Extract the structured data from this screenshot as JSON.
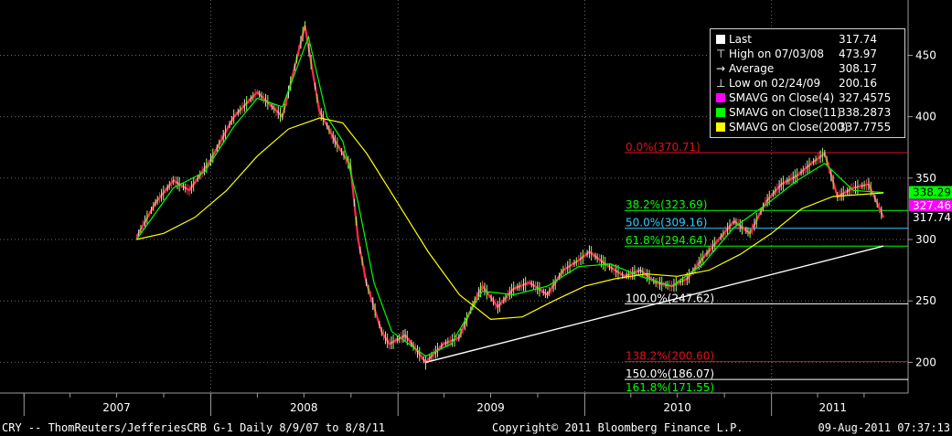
{
  "footer": {
    "left": "CRY -- ThomReuters/JefferiesCRB   G-1  Daily  8/9/07 to 8/8/11",
    "center": "Copyright© 2011 Bloomberg Finance L.P.",
    "right": "09-Aug-2011 07:37:13"
  },
  "legend": [
    {
      "glyph": "square",
      "color": "#ffffff",
      "label": "Last",
      "value": "317.74"
    },
    {
      "glyph": "high-marker",
      "color": "#ffffff",
      "label": "High on 07/03/08",
      "value": "473.97"
    },
    {
      "glyph": "average-marker",
      "color": "#ffffff",
      "label": "Average",
      "value": "308.17"
    },
    {
      "glyph": "low-marker",
      "color": "#ffffff",
      "label": "Low on 02/24/09",
      "value": "200.16"
    },
    {
      "glyph": "square",
      "color": "#ff00ff",
      "label": "SMAVG on Close(4)",
      "value": "327.4575"
    },
    {
      "glyph": "square",
      "color": "#00ff00",
      "label": "SMAVG on Close(11)",
      "value": "338.2873"
    },
    {
      "glyph": "square",
      "color": "#ffff00",
      "label": "SMAVG on Close(200)",
      "value": "337.7755"
    }
  ],
  "chart_data": {
    "type": "line",
    "x_tick_labels": [
      "2007",
      "2008",
      "2009",
      "2010",
      "2011"
    ],
    "y_ticks": [
      200,
      250,
      300,
      350,
      400,
      450
    ],
    "ylim": [
      175,
      495
    ],
    "grid": true,
    "legend_position": "top-right",
    "series": [
      {
        "name": "Last",
        "color": "#ff2a4a",
        "x": [
          "2007-08-09",
          "2007-09-15",
          "2007-10-20",
          "2007-11-20",
          "2008-01-01",
          "2008-02-15",
          "2008-04-01",
          "2008-05-20",
          "2008-07-03",
          "2008-07-31",
          "2008-08-31",
          "2008-09-30",
          "2008-10-15",
          "2008-10-31",
          "2008-11-30",
          "2008-12-15",
          "2009-01-15",
          "2009-02-24",
          "2009-03-31",
          "2009-04-30",
          "2009-05-31",
          "2009-06-15",
          "2009-07-15",
          "2009-08-15",
          "2009-09-15",
          "2009-10-20",
          "2009-11-20",
          "2009-12-20",
          "2010-01-10",
          "2010-02-10",
          "2010-03-20",
          "2010-04-20",
          "2010-05-20",
          "2010-06-20",
          "2010-07-20",
          "2010-08-20",
          "2010-09-20",
          "2010-10-20",
          "2010-11-20",
          "2010-12-20",
          "2011-01-20",
          "2011-02-20",
          "2011-03-20",
          "2011-04-15",
          "2011-05-10",
          "2011-06-10",
          "2011-07-10",
          "2011-08-08"
        ],
        "values": [
          302,
          330,
          348,
          340,
          365,
          400,
          420,
          400,
          474,
          405,
          380,
          360,
          300,
          265,
          225,
          215,
          222,
          200,
          215,
          220,
          250,
          262,
          245,
          260,
          265,
          255,
          275,
          283,
          290,
          280,
          270,
          275,
          265,
          262,
          268,
          285,
          300,
          315,
          305,
          330,
          345,
          352,
          362,
          370,
          335,
          342,
          345,
          318
        ]
      },
      {
        "name": "SMAVG on Close(4)",
        "color": "#ff00ff",
        "x": [
          "2011-08-08"
        ],
        "values": [
          327.46
        ]
      },
      {
        "name": "SMAVG on Close(11)",
        "color": "#00ff00",
        "x": [
          "2007-08-09",
          "2007-10-20",
          "2007-12-20",
          "2008-02-15",
          "2008-04-01",
          "2008-05-20",
          "2008-07-10",
          "2008-08-15",
          "2008-09-15",
          "2008-10-15",
          "2008-11-15",
          "2008-12-20",
          "2009-02-24",
          "2009-04-15",
          "2009-06-15",
          "2009-08-15",
          "2009-10-20",
          "2009-12-20",
          "2010-02-20",
          "2010-04-20",
          "2010-06-20",
          "2010-08-20",
          "2010-10-20",
          "2010-12-20",
          "2011-02-20",
          "2011-04-15",
          "2011-06-10",
          "2011-08-08"
        ],
        "values": [
          300,
          342,
          355,
          392,
          415,
          408,
          465,
          400,
          380,
          330,
          265,
          225,
          205,
          215,
          258,
          255,
          262,
          278,
          280,
          270,
          262,
          280,
          310,
          328,
          348,
          362,
          340,
          338.29
        ]
      },
      {
        "name": "SMAVG on Close(200)",
        "color": "#ffff00",
        "x": [
          "2007-08-09",
          "2007-10-01",
          "2007-12-01",
          "2008-02-01",
          "2008-04-01",
          "2008-06-01",
          "2008-08-01",
          "2008-09-15",
          "2008-11-01",
          "2008-12-31",
          "2009-03-01",
          "2009-05-01",
          "2009-07-01",
          "2009-09-01",
          "2009-11-01",
          "2010-01-01",
          "2010-03-01",
          "2010-05-01",
          "2010-07-01",
          "2010-09-01",
          "2010-11-01",
          "2011-01-01",
          "2011-03-01",
          "2011-05-01",
          "2011-08-08"
        ],
        "values": [
          300,
          305,
          318,
          340,
          368,
          390,
          399,
          395,
          370,
          330,
          290,
          255,
          235,
          237,
          250,
          262,
          268,
          272,
          270,
          275,
          288,
          305,
          325,
          335,
          338
        ]
      },
      {
        "name": "Trendline",
        "color": "#ffffff",
        "x": [
          "2009-02-24",
          "2011-08-08"
        ],
        "values": [
          200,
          294.64
        ]
      }
    ],
    "fibonacci": [
      {
        "label": "0.0%(370.71)",
        "value": 370.71,
        "color": "#e0101a"
      },
      {
        "label": "38.2%(323.69)",
        "value": 323.69,
        "color": "#00ff00"
      },
      {
        "label": "50.0%(309.16)",
        "value": 309.16,
        "color": "#33ccff"
      },
      {
        "label": "61.8%(294.64)",
        "value": 294.64,
        "color": "#00ff00"
      },
      {
        "label": "100.0%(247.62)",
        "value": 247.62,
        "color": "#ffffff"
      },
      {
        "label": "138.2%(200.60)",
        "value": 200.6,
        "color": "#e0101a"
      },
      {
        "label": "150.0%(186.07)",
        "value": 186.07,
        "color": "#ffffff"
      },
      {
        "label": "161.8%(171.55)",
        "value": 171.55,
        "color": "#00ff00"
      }
    ],
    "price_tags": [
      {
        "text": "338.29",
        "value": 338.29,
        "bg": "#00ff00",
        "fg": "#000000"
      },
      {
        "text": "327.46",
        "value": 327.46,
        "bg": "#ff00ff",
        "fg": "#ffffff"
      },
      {
        "text": "317.74",
        "value": 317.74,
        "bg": "#000000",
        "fg": "#ffffff"
      }
    ]
  }
}
